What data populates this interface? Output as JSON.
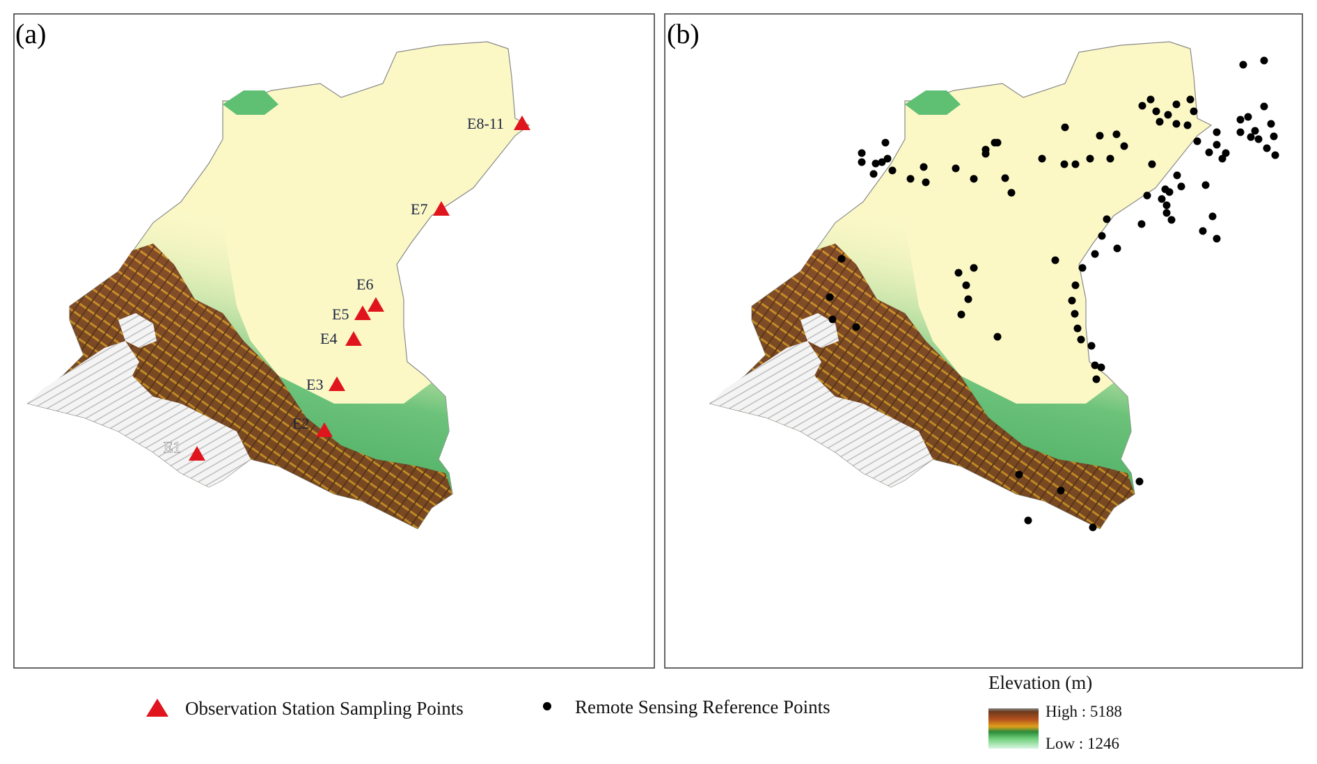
{
  "panels": [
    {
      "label": "(a)"
    },
    {
      "label": "(b)"
    }
  ],
  "stations": [
    {
      "id": "E1",
      "label": "E1"
    },
    {
      "id": "E2",
      "label": "E2"
    },
    {
      "id": "E3",
      "label": "E3"
    },
    {
      "id": "E4",
      "label": "E4"
    },
    {
      "id": "E5",
      "label": "E5"
    },
    {
      "id": "E6",
      "label": "E6"
    },
    {
      "id": "E7",
      "label": "E7"
    },
    {
      "id": "E8-11",
      "label": "E8-11"
    }
  ],
  "legend": {
    "station_symbol_label": "Observation Station Sampling Points",
    "reference_symbol_label": "Remote Sensing Reference Points",
    "elevation_title": "Elevation (m)",
    "high_label": "High : 5188",
    "low_label": "Low : 1246"
  },
  "colors": {
    "station_marker": "#e0141c",
    "reference_marker": "#000000",
    "desert": "#fbf8c6",
    "elevation_ramp": [
      "#f2f2f2",
      "#7a3d1f",
      "#c8a000",
      "#2d9a4a",
      "#b9ecc8"
    ]
  }
}
